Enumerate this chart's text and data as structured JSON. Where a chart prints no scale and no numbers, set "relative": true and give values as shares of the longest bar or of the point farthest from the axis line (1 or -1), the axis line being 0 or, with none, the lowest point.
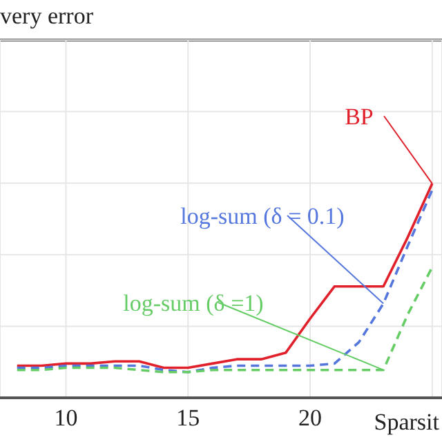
{
  "chart_data": {
    "type": "line",
    "title": "very error",
    "xlabel": "Sparsit",
    "relative": true,
    "x": [
      8,
      9,
      10,
      11,
      12,
      13,
      14,
      15,
      16,
      17,
      18,
      19,
      20,
      21,
      22,
      23,
      24,
      25
    ],
    "xlim": [
      7.3,
      25.4
    ],
    "xticks": [
      10,
      15,
      20,
      {
        "value": 25,
        "label": null
      }
    ],
    "grid": true,
    "marker": "none",
    "legend": false,
    "series": [
      {
        "name": "BP",
        "color": "#e0202a",
        "line_style": "solid",
        "values": [
          0.15,
          0.15,
          0.16,
          0.16,
          0.17,
          0.17,
          0.14,
          0.14,
          0.16,
          0.18,
          0.18,
          0.21,
          0.37,
          0.52,
          0.52,
          0.52,
          0.75,
          1.0
        ]
      },
      {
        "name": "log-sum (δ = 0.1)",
        "color": "#5577dd",
        "line_style": "dashed",
        "values": [
          0.14,
          0.14,
          0.15,
          0.15,
          0.15,
          0.15,
          0.13,
          0.12,
          0.14,
          0.15,
          0.15,
          0.15,
          0.15,
          0.16,
          0.26,
          0.44,
          0.71,
          0.97
        ]
      },
      {
        "name": "log-sum (δ =1)",
        "color": "#66cc66",
        "line_style": "dashed",
        "values": [
          0.13,
          0.13,
          0.14,
          0.14,
          0.14,
          0.13,
          0.12,
          0.12,
          0.13,
          0.13,
          0.13,
          0.13,
          0.13,
          0.13,
          0.13,
          0.13,
          0.39,
          0.61
        ]
      }
    ]
  }
}
